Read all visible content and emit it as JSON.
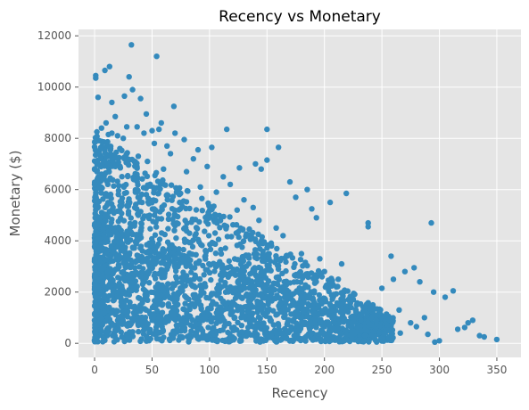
{
  "chart_data": {
    "type": "scatter",
    "title": "Recency vs Monetary",
    "xlabel": "Recency",
    "ylabel": "Monetary ($)",
    "xlim": [
      -14,
      371
    ],
    "ylim": [
      -550,
      12250
    ],
    "xticks": [
      0,
      50,
      100,
      150,
      200,
      250,
      300,
      350
    ],
    "yticks": [
      0,
      2000,
      4000,
      6000,
      8000,
      10000,
      12000
    ],
    "grid": true,
    "series": [
      {
        "color": "#348abd",
        "points": [
          [
            1,
            10450
          ],
          [
            1,
            10350
          ],
          [
            3,
            9600
          ],
          [
            9,
            10650
          ],
          [
            13,
            10800
          ],
          [
            15,
            9400
          ],
          [
            18,
            8850
          ],
          [
            26,
            9650
          ],
          [
            30,
            10400
          ],
          [
            32,
            11650
          ],
          [
            33,
            9900
          ],
          [
            40,
            9550
          ],
          [
            45,
            8950
          ],
          [
            54,
            11200
          ],
          [
            58,
            8600
          ],
          [
            69,
            9250
          ],
          [
            2,
            8250
          ],
          [
            6,
            8400
          ],
          [
            10,
            8600
          ],
          [
            12,
            8150
          ],
          [
            15,
            8200
          ],
          [
            20,
            8100
          ],
          [
            25,
            8000
          ],
          [
            28,
            8450
          ],
          [
            37,
            8450
          ],
          [
            43,
            8200
          ],
          [
            50,
            8300
          ],
          [
            56,
            8350
          ],
          [
            63,
            7700
          ],
          [
            70,
            8200
          ],
          [
            78,
            7950
          ],
          [
            90,
            7550
          ],
          [
            102,
            7650
          ],
          [
            115,
            8350
          ],
          [
            126,
            6850
          ],
          [
            140,
            7000
          ],
          [
            150,
            8350
          ],
          [
            160,
            7650
          ],
          [
            150,
            7150
          ],
          [
            145,
            6800
          ],
          [
            170,
            6300
          ],
          [
            175,
            5700
          ],
          [
            185,
            6000
          ],
          [
            189,
            5250
          ],
          [
            193,
            4900
          ],
          [
            205,
            5500
          ],
          [
            219,
            5850
          ],
          [
            238,
            4700
          ],
          [
            238,
            4550
          ],
          [
            258,
            3400
          ],
          [
            293,
            4700
          ],
          [
            270,
            2800
          ],
          [
            278,
            2950
          ],
          [
            260,
            2500
          ],
          [
            250,
            2150
          ],
          [
            295,
            2000
          ],
          [
            283,
            2400
          ],
          [
            305,
            1800
          ],
          [
            312,
            2050
          ],
          [
            325,
            800
          ],
          [
            329,
            900
          ],
          [
            335,
            300
          ],
          [
            339,
            250
          ],
          [
            350,
            150
          ],
          [
            300,
            100
          ],
          [
            296,
            50
          ],
          [
            316,
            550
          ],
          [
            322,
            620
          ],
          [
            228,
            1500
          ],
          [
            245,
            1100
          ],
          [
            265,
            1300
          ],
          [
            275,
            800
          ],
          [
            280,
            650
          ],
          [
            287,
            1000
          ],
          [
            290,
            350
          ],
          [
            235,
            300
          ],
          [
            256,
            250
          ],
          [
            266,
            400
          ],
          [
            245,
            900
          ],
          [
            224,
            200
          ],
          [
            208,
            1900
          ],
          [
            212,
            2500
          ],
          [
            215,
            3100
          ],
          [
            200,
            2800
          ],
          [
            196,
            3300
          ],
          [
            180,
            3500
          ],
          [
            176,
            2400
          ],
          [
            168,
            1800
          ],
          [
            164,
            4200
          ],
          [
            158,
            4500
          ],
          [
            154,
            3800
          ],
          [
            148,
            3200
          ],
          [
            143,
            4800
          ],
          [
            138,
            5300
          ],
          [
            130,
            5600
          ],
          [
            124,
            5200
          ],
          [
            118,
            6200
          ],
          [
            112,
            6500
          ],
          [
            106,
            5900
          ],
          [
            98,
            6900
          ],
          [
            92,
            6100
          ],
          [
            86,
            7200
          ],
          [
            80,
            6700
          ],
          [
            74,
            5500
          ],
          [
            66,
            7400
          ],
          [
            60,
            6800
          ],
          [
            52,
            7800
          ],
          [
            46,
            7100
          ],
          [
            38,
            7300
          ],
          [
            34,
            6400
          ],
          [
            22,
            7600
          ],
          [
            18,
            6900
          ],
          [
            8,
            7100
          ],
          [
            4,
            7400
          ],
          [
            2,
            6700
          ],
          [
            0,
            6200
          ],
          [
            1,
            5800
          ],
          [
            1,
            5200
          ],
          [
            0,
            4600
          ],
          [
            1,
            3900
          ],
          [
            0,
            3200
          ],
          [
            1,
            2600
          ],
          [
            0,
            2100
          ],
          [
            1,
            1500
          ],
          [
            0,
            900
          ],
          [
            1,
            400
          ],
          [
            0,
            100
          ],
          [
            2,
            1100
          ]
        ]
      }
    ]
  }
}
